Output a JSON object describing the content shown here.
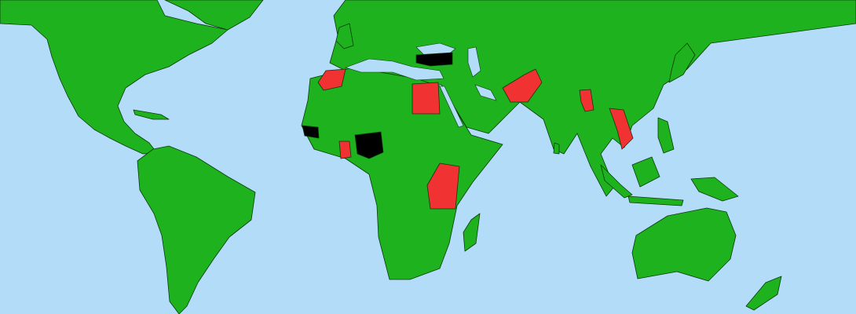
{
  "map": {
    "colors": {
      "ocean": "#b3dcf8",
      "land": "#1eb31e",
      "highlight_red": "#f03232",
      "highlight_black": "#000000",
      "border": "#0b3a0b"
    }
  }
}
